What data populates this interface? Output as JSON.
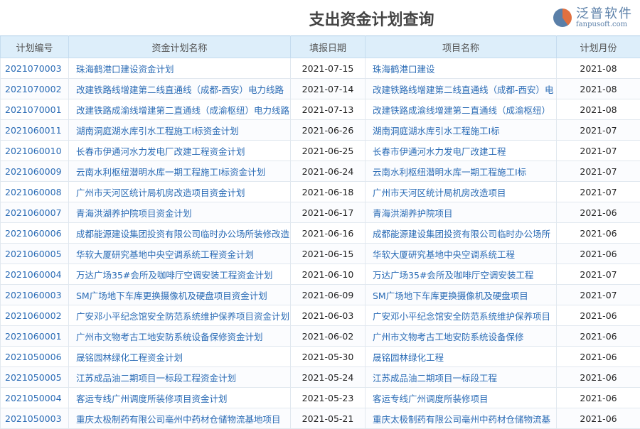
{
  "title": "支出资金计划查询",
  "columns": [
    "计划编号",
    "资金计划名称",
    "填报日期",
    "项目名称",
    "计划月份"
  ],
  "rows": [
    [
      "2021070003",
      "珠海鹤港口建设资金计划",
      "2021-07-15",
      "珠海鹤港口建设",
      "2021-08"
    ],
    [
      "2021070002",
      "改建铁路线增建第二线直通线（成都-西安）电力线路",
      "2021-07-14",
      "改建铁路线增建第二线直通线（成都-西安）电",
      "2021-08"
    ],
    [
      "2021070001",
      "改建铁路成渝线增建第二直通线（成渝枢纽）电力线路",
      "2021-07-13",
      "改建铁路成渝线增建第二直通线（成渝枢纽）",
      "2021-08"
    ],
    [
      "2021060011",
      "湖南洞庭湖水库引水工程施工Ⅰ标资金计划",
      "2021-06-26",
      "湖南洞庭湖水库引水工程施工Ⅰ标",
      "2021-07"
    ],
    [
      "2021060010",
      "长春市伊通河水力发电厂改建工程资金计划",
      "2021-06-25",
      "长春市伊通河水力发电厂改建工程",
      "2021-07"
    ],
    [
      "2021060009",
      "云南水利枢纽潜明水库一期工程施工Ⅰ标资金计划",
      "2021-06-24",
      "云南水利枢纽潜明水库一期工程施工Ⅰ标",
      "2021-07"
    ],
    [
      "2021060008",
      "广州市天河区统计局机房改造项目资金计划",
      "2021-06-18",
      "广州市天河区统计局机房改造项目",
      "2021-07"
    ],
    [
      "2021060007",
      "青海洪湖养护院项目资金计划",
      "2021-06-17",
      "青海洪湖养护院项目",
      "2021-06"
    ],
    [
      "2021060006",
      "成都能源建设集团投资有限公司临时办公场所装修改造",
      "2021-06-16",
      "成都能源建设集团投资有限公司临时办公场所",
      "2021-06"
    ],
    [
      "2021060005",
      "华软大厦研究基地中央空调系统工程资金计划",
      "2021-06-15",
      "华软大厦研究基地中央空调系统工程",
      "2021-06"
    ],
    [
      "2021060004",
      "万达广场35#会所及咖啡厅空调安装工程资金计划",
      "2021-06-10",
      "万达广场35#会所及咖啡厅空调安装工程",
      "2021-07"
    ],
    [
      "2021060003",
      "SM广场地下车库更换摄像机及硬盘项目资金计划",
      "2021-06-09",
      "SM广场地下车库更换摄像机及硬盘项目",
      "2021-07"
    ],
    [
      "2021060002",
      "广安邓小平纪念馆安全防范系统维护保养项目资金计划",
      "2021-06-03",
      "广安邓小平纪念馆安全防范系统维护保养项目",
      "2021-06"
    ],
    [
      "2021060001",
      "广州市文物考古工地安防系统设备保修资金计划",
      "2021-06-02",
      "广州市文物考古工地安防系统设备保修",
      "2021-06"
    ],
    [
      "2021050006",
      "晟铭园林绿化工程资金计划",
      "2021-05-30",
      "晟铭园林绿化工程",
      "2021-06"
    ],
    [
      "2021050005",
      "江苏成品油二期项目一标段工程资金计划",
      "2021-05-24",
      "江苏成品油二期项目一标段工程",
      "2021-06"
    ],
    [
      "2021050004",
      "客运专线广州调度所装修项目资金计划",
      "2021-05-23",
      "客运专线广州调度所装修项目",
      "2021-06"
    ],
    [
      "2021050003",
      "重庆太极制药有限公司亳州中药材仓储物流基地项目",
      "2021-05-21",
      "重庆太极制药有限公司亳州中药材仓储物流基",
      "2021-06"
    ]
  ],
  "watermark": {
    "text": "泛普软件",
    "url": "fanpusoft.com"
  }
}
